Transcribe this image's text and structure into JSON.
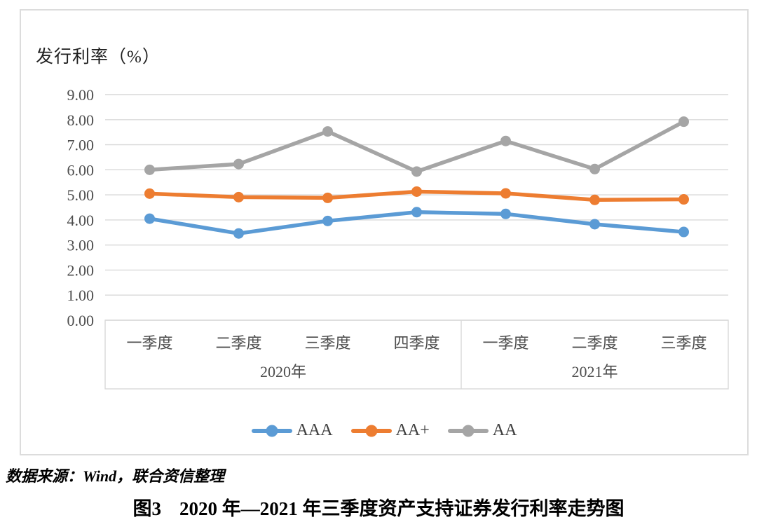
{
  "chart": {
    "axis_title": "发行利率（%）",
    "source_note": "数据来源：Wind，联合资信整理",
    "caption": {
      "label": "图3",
      "text": "2020 年—2021 年三季度资产支持证券发行利率走势图"
    },
    "panel_border_color": "#dcdcdc"
  },
  "chart_data": {
    "type": "line",
    "title": "发行利率（%）",
    "xlabel": "",
    "ylabel": "发行利率（%）",
    "ylim": [
      0,
      9
    ],
    "ytick_step": 1,
    "ytick_labels": [
      "0.00",
      "1.00",
      "2.00",
      "3.00",
      "4.00",
      "5.00",
      "6.00",
      "7.00",
      "8.00",
      "9.00"
    ],
    "grid": true,
    "grid_color": "#d9d9d9",
    "legend_position": "bottom",
    "categories": [
      "一季度",
      "二季度",
      "三季度",
      "四季度",
      "一季度",
      "二季度",
      "三季度"
    ],
    "x_groups": [
      {
        "year": "2020年",
        "quarters": [
          "一季度",
          "二季度",
          "三季度",
          "四季度"
        ]
      },
      {
        "year": "2021年",
        "quarters": [
          "一季度",
          "二季度",
          "三季度"
        ]
      }
    ],
    "series": [
      {
        "name": "AAA",
        "color": "#5B9BD5",
        "values": [
          4.05,
          3.46,
          3.96,
          4.31,
          4.24,
          3.83,
          3.52
        ]
      },
      {
        "name": "AA+",
        "color": "#ED7D31",
        "values": [
          5.05,
          4.91,
          4.88,
          5.13,
          5.06,
          4.8,
          4.82
        ]
      },
      {
        "name": "AA",
        "color": "#A5A5A5",
        "values": [
          6.0,
          6.23,
          7.53,
          5.93,
          7.15,
          6.03,
          7.92
        ]
      }
    ]
  }
}
